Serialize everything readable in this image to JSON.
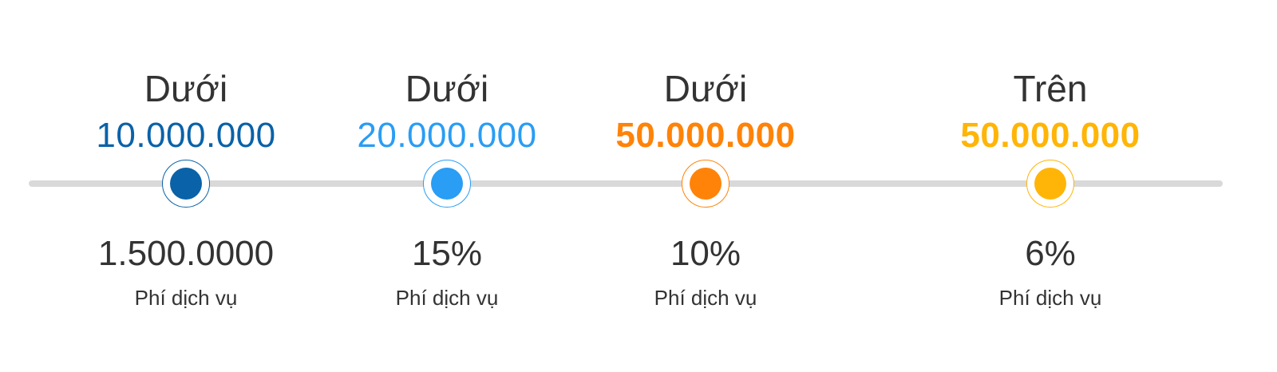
{
  "tiers": [
    {
      "qualifier": "Dưới",
      "threshold": "10.000.000",
      "fee": "1.500.0000",
      "fee_label": "Phí dịch vụ",
      "color": "#0a62a8"
    },
    {
      "qualifier": "Dưới",
      "threshold": "20.000.000",
      "fee": "15%",
      "fee_label": "Phí dịch vụ",
      "color": "#2a9df4"
    },
    {
      "qualifier": "Dưới",
      "threshold": "50.000.000",
      "fee": "10%",
      "fee_label": "Phí dịch vụ",
      "color": "#ff8308"
    },
    {
      "qualifier": "Trên",
      "threshold": "50.000.000",
      "fee": "6%",
      "fee_label": "Phí dịch vụ",
      "color": "#ffb508"
    }
  ],
  "colors": {
    "track": "#d9d9d9",
    "text": "#333333"
  }
}
